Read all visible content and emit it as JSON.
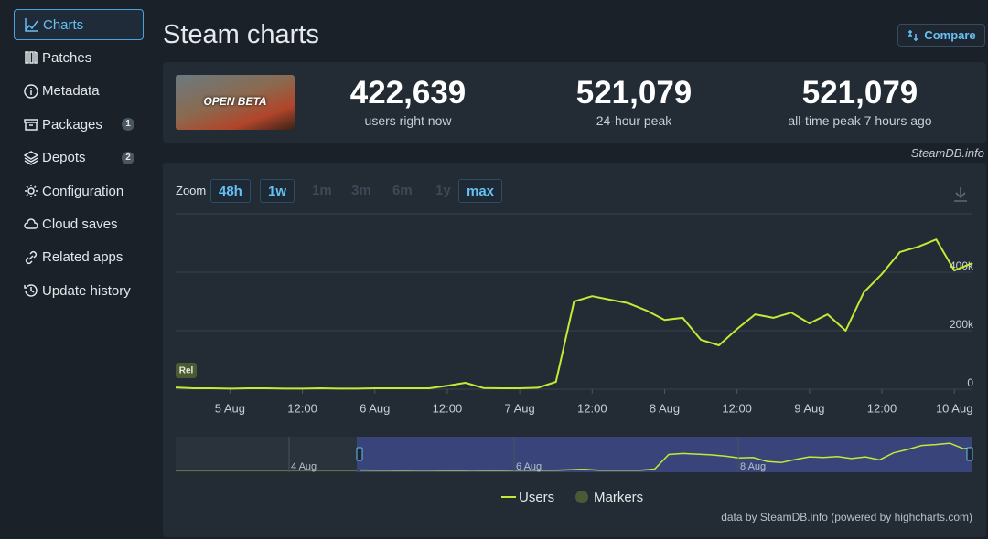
{
  "sidebar": {
    "items": [
      {
        "label": "Charts"
      },
      {
        "label": "Patches"
      },
      {
        "label": "Metadata"
      },
      {
        "label": "Packages",
        "badge": 1
      },
      {
        "label": "Depots",
        "badge": 2
      },
      {
        "label": "Configuration"
      },
      {
        "label": "Cloud saves"
      },
      {
        "label": "Related apps"
      },
      {
        "label": "Update history"
      }
    ]
  },
  "header": {
    "title": "Steam charts",
    "compare": "Compare"
  },
  "stats": {
    "image_text": "OPEN BETA",
    "items": [
      {
        "value": "422,639",
        "label": "users right now"
      },
      {
        "value": "521,079",
        "label": "24-hour peak"
      },
      {
        "value": "521,079",
        "label": "all-time peak 7 hours ago"
      }
    ]
  },
  "watermark": "SteamDB.info",
  "chart_data": {
    "type": "line",
    "zoom_label": "Zoom",
    "zoom_buttons": [
      "48h",
      "1w",
      "1m",
      "3m",
      "6m",
      "1y",
      "max"
    ],
    "categories": [
      null,
      null,
      null,
      "5 Aug",
      null,
      null,
      null,
      "12:00",
      null,
      null,
      null,
      "6 Aug",
      null,
      null,
      null,
      "12:00",
      null,
      null,
      null,
      "7 Aug",
      null,
      null,
      null,
      "12:00",
      null,
      null,
      null,
      "8 Aug",
      null,
      null,
      null,
      "12:00",
      null,
      null,
      null,
      "9 Aug",
      null,
      null,
      null,
      "12:00",
      null,
      null,
      null,
      "10 Aug",
      null
    ],
    "series": [
      {
        "name": "Users",
        "color": "#c4ea36",
        "values": [
          6000,
          3000,
          3000,
          2000,
          3000,
          3000,
          2000,
          2000,
          3000,
          2000,
          2000,
          3000,
          3000,
          3000,
          3000,
          12000,
          22000,
          4000,
          3000,
          3000,
          5000,
          25000,
          300000,
          318000,
          306000,
          294000,
          269000,
          237000,
          244000,
          169000,
          150000,
          206000,
          256000,
          244000,
          262000,
          225000,
          256000,
          200000,
          331000,
          394000,
          469000,
          487000,
          512000,
          406000,
          431000
        ]
      }
    ],
    "markers": {
      "name": "Markers",
      "color": "#4b5a35",
      "label": "Rel"
    },
    "ylim": [
      0,
      600000
    ],
    "yticks": [
      {
        "value": 0,
        "label": "0"
      },
      {
        "value": 200000,
        "label": "200k"
      },
      {
        "value": 400000,
        "label": "400k"
      }
    ],
    "grid": true,
    "navigator_labels": [
      "4 Aug",
      "6 Aug",
      "8 Aug"
    ],
    "credit": "data by SteamDB.info (powered by highcharts.com)"
  }
}
